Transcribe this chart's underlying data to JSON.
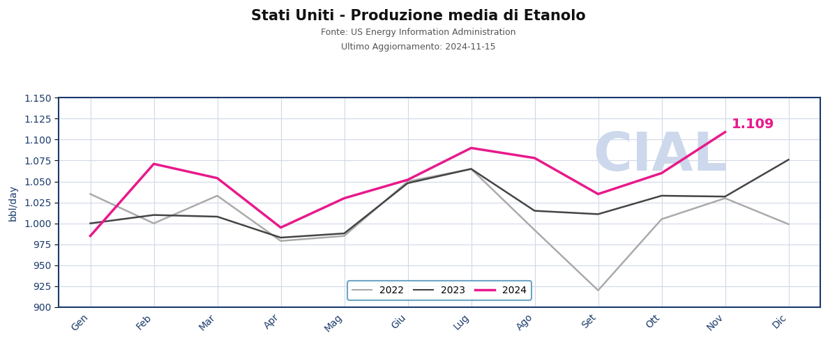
{
  "title": "Stati Uniti - Produzione media di Etanolo",
  "subtitle1": "Fonte: US Energy Information Administration",
  "subtitle2": "Ultimo Aggiornamento: 2024-11-15",
  "ylabel": "bbl/day",
  "months": [
    "Gen",
    "Feb",
    "Mar",
    "Apr",
    "Mag",
    "Giu",
    "Lug",
    "Ago",
    "Set",
    "Ott",
    "Nov",
    "Dic"
  ],
  "series_2022": [
    1035,
    1000,
    1033,
    979,
    985,
    1050,
    1065,
    992,
    920,
    1005,
    1030,
    999
  ],
  "series_2023": [
    1000,
    1010,
    1008,
    983,
    988,
    1048,
    1065,
    1015,
    1011,
    1033,
    1032,
    1076
  ],
  "series_2024": [
    985,
    1071,
    1054,
    995,
    1030,
    1052,
    1090,
    1078,
    1035,
    1060,
    1109,
    null
  ],
  "color_2022": "#aaaaaa",
  "color_2023": "#444444",
  "color_2024": "#e8198b",
  "last_value_2024": "1.109",
  "last_value_color": "#e8198b",
  "ylim": [
    900,
    1150
  ],
  "yticks": [
    900,
    925,
    950,
    975,
    1000,
    1025,
    1050,
    1075,
    1100,
    1125,
    1150
  ],
  "background_color": "#ffffff",
  "grid_color": "#d0d8e8",
  "axis_color": "#1a3a6b",
  "watermark_text": "CIAL",
  "watermark_color": "#cdd8ec",
  "legend_box_color": "#4a90b8",
  "title_fontsize": 15,
  "subtitle_fontsize": 9,
  "tick_fontsize": 10,
  "ylabel_fontsize": 10
}
